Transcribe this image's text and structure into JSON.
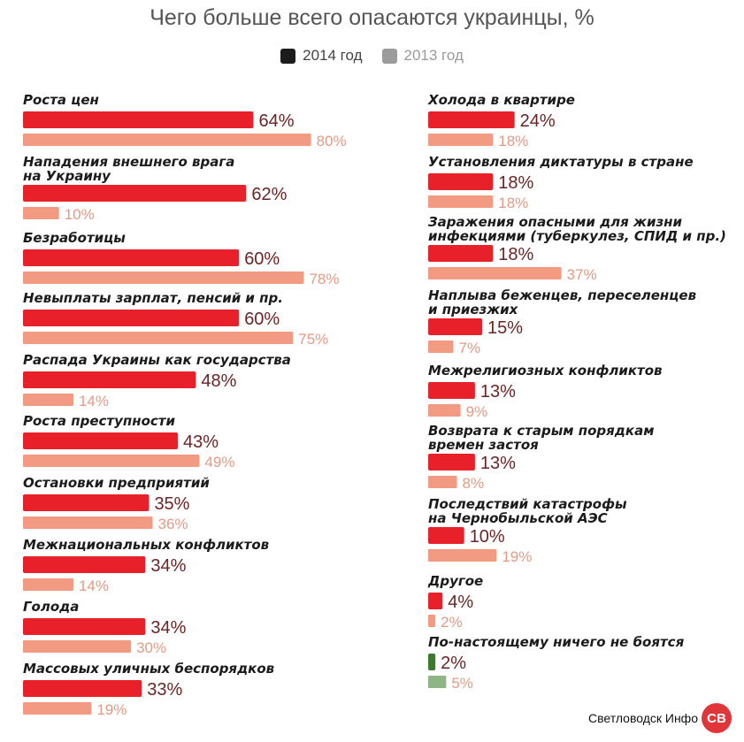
{
  "legend": {
    "label_2014": "2014 год",
    "label_2013": "2013 год",
    "color_2014": "#1c1c1c",
    "color_2013": "#9b9b9b"
  },
  "watermark": {
    "text": "Светловодск Инфо",
    "badge": "СВ"
  },
  "colors": {
    "bar_2014": "#e8202a",
    "bar_2013": "#f39b82",
    "bar_2014_none": "#3e7a2e",
    "bar_2013_none": "#8fb584"
  },
  "chart_data": {
    "type": "bar",
    "orientation": "horizontal",
    "title": "Чего больше всего опасаются  украинцы, %",
    "unit": "%",
    "series_names": [
      "2014 год",
      "2013 год"
    ],
    "categories": [
      {
        "label": [
          "Роста цен"
        ],
        "v2014": 64,
        "v2013": 80
      },
      {
        "label": [
          "Нападения внешнего врага",
          "на Украину"
        ],
        "v2014": 62,
        "v2013": 10
      },
      {
        "label": [
          "Безработицы"
        ],
        "v2014": 60,
        "v2013": 78
      },
      {
        "label": [
          "Невыплаты зарплат, пенсий и пр."
        ],
        "v2014": 60,
        "v2013": 75
      },
      {
        "label": [
          "Распада Украины как государства"
        ],
        "v2014": 48,
        "v2013": 14
      },
      {
        "label": [
          "Роста преступности"
        ],
        "v2014": 43,
        "v2013": 49
      },
      {
        "label": [
          "Остановки предприятий"
        ],
        "v2014": 35,
        "v2013": 36
      },
      {
        "label": [
          "Межнациональных конфликтов"
        ],
        "v2014": 34,
        "v2013": 14
      },
      {
        "label": [
          "Голода"
        ],
        "v2014": 34,
        "v2013": 30
      },
      {
        "label": [
          "Массовых уличных беспорядков"
        ],
        "v2014": 33,
        "v2013": 19
      },
      {
        "label": [
          "Холода в квартире"
        ],
        "v2014": 24,
        "v2013": 18
      },
      {
        "label": [
          "Установления диктатуры в стране"
        ],
        "v2014": 18,
        "v2013": 18
      },
      {
        "label": [
          "Заражения опасными для жизни",
          "инфекциями (туберкулез, СПИД и пр.)"
        ],
        "v2014": 18,
        "v2013": 37
      },
      {
        "label": [
          "Наплыва беженцев, переселенцев",
          "и приезжих"
        ],
        "v2014": 15,
        "v2013": 7
      },
      {
        "label": [
          "Межрелигиозных конфликтов"
        ],
        "v2014": 13,
        "v2013": 9
      },
      {
        "label": [
          "Возврата к старым порядкам",
          "времен застоя"
        ],
        "v2014": 13,
        "v2013": 8
      },
      {
        "label": [
          "Последствий катастрофы",
          "на Чернобыльской АЭС"
        ],
        "v2014": 10,
        "v2013": 19
      },
      {
        "label": [
          "Другое"
        ],
        "v2014": 4,
        "v2013": 2
      },
      {
        "label": [
          "По-настоящему ничего не боятся"
        ],
        "v2014": 2,
        "v2013": 5,
        "highlight": "none"
      }
    ]
  }
}
